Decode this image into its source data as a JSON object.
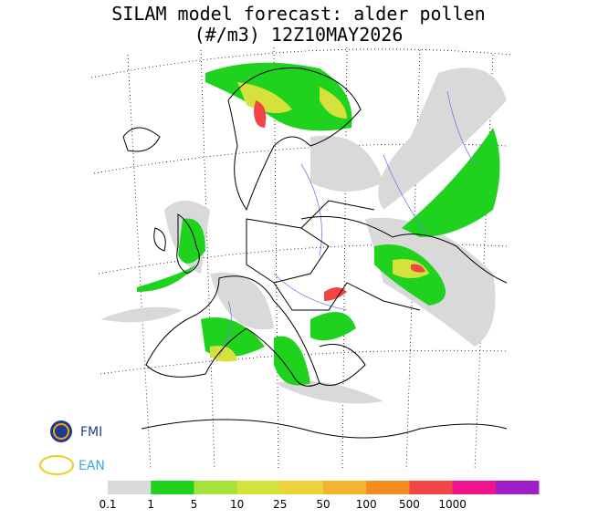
{
  "header": {
    "title_line1": "SILAM model forecast: alder pollen",
    "title_line2": "(#/m3) 12Z10MAY2026"
  },
  "logos": {
    "fmi": "FMI",
    "ean": "EAN"
  },
  "legend": {
    "colors": [
      "#d9d9d9",
      "#1ed21e",
      "#a5e33c",
      "#d6e23c",
      "#eed23c",
      "#f3b431",
      "#f58c23",
      "#f24646",
      "#f0148c",
      "#a01ec8"
    ],
    "labels": [
      "0.1",
      "1",
      "5",
      "10",
      "25",
      "50",
      "100",
      "500",
      "1000"
    ]
  }
}
